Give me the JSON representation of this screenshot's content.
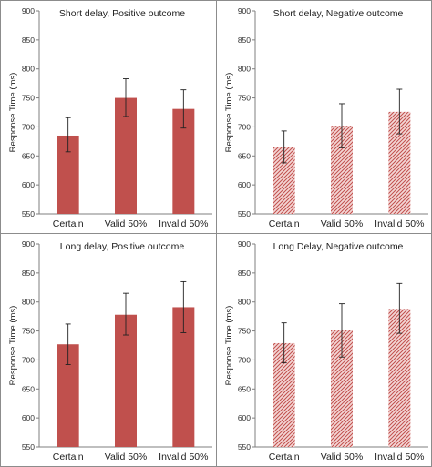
{
  "colors": {
    "bar": "#c0504d",
    "hatch_bg": "#f4d6d5",
    "axis": "#7f7f7f",
    "error": "#222222"
  },
  "chart_data": [
    {
      "type": "bar",
      "title": "Short delay, Positive outcome",
      "ylabel": "Response Time (ms)",
      "xlabel": "",
      "categories": [
        "Certain",
        "Valid 50%",
        "Invalid 50%"
      ],
      "values": [
        685,
        750,
        731
      ],
      "error_low": [
        657,
        718,
        698
      ],
      "error_high": [
        716,
        783,
        764
      ],
      "ylim": [
        550,
        900
      ],
      "yticks": [
        550,
        600,
        650,
        700,
        750,
        800,
        850,
        900
      ],
      "fill": "solid",
      "grid": false
    },
    {
      "type": "bar",
      "title": "Short delay, Negative outcome",
      "ylabel": "Response Time (ms)",
      "xlabel": "",
      "categories": [
        "Certain",
        "Valid 50%",
        "Invalid 50%"
      ],
      "values": [
        665,
        702,
        726
      ],
      "error_low": [
        638,
        664,
        688
      ],
      "error_high": [
        693,
        740,
        765
      ],
      "ylim": [
        550,
        900
      ],
      "yticks": [
        550,
        600,
        650,
        700,
        750,
        800,
        850,
        900
      ],
      "fill": "hatched",
      "grid": false
    },
    {
      "type": "bar",
      "title": "Long delay, Positive outcome",
      "ylabel": "Response Time (ms)",
      "xlabel": "",
      "categories": [
        "Certain",
        "Valid 50%",
        "Invalid 50%"
      ],
      "values": [
        727,
        778,
        791
      ],
      "error_low": [
        692,
        743,
        747
      ],
      "error_high": [
        762,
        815,
        835
      ],
      "ylim": [
        550,
        900
      ],
      "yticks": [
        550,
        600,
        650,
        700,
        750,
        800,
        850,
        900
      ],
      "fill": "solid",
      "grid": false
    },
    {
      "type": "bar",
      "title": "Long Delay, Negative outcome",
      "ylabel": "Response Time (ms)",
      "xlabel": "",
      "categories": [
        "Certain",
        "Valid 50%",
        "Invalid 50%"
      ],
      "values": [
        729,
        751,
        788
      ],
      "error_low": [
        695,
        705,
        746
      ],
      "error_high": [
        764,
        797,
        832
      ],
      "ylim": [
        550,
        900
      ],
      "yticks": [
        550,
        600,
        650,
        700,
        750,
        800,
        850,
        900
      ],
      "fill": "hatched",
      "grid": false
    }
  ]
}
